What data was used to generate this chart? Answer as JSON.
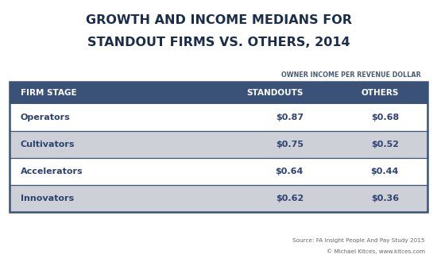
{
  "title_line1": "GROWTH AND INCOME MEDIANS FOR",
  "title_line2": "STANDOUT FIRMS VS. OTHERS, 2014",
  "subtitle": "OWNER INCOME PER REVENUE DOLLAR",
  "header": [
    "FIRM STAGE",
    "STANDOUTS",
    "OTHERS"
  ],
  "rows": [
    [
      "Operators",
      "$0.87",
      "$0.68"
    ],
    [
      "Cultivators",
      "$0.75",
      "$0.52"
    ],
    [
      "Accelerators",
      "$0.64",
      "$0.44"
    ],
    [
      "Innovators",
      "$0.62",
      "$0.36"
    ]
  ],
  "header_bg": "#3a5278",
  "header_text": "#ffffff",
  "row_bg_even": "#ffffff",
  "row_bg_odd": "#cdd0d6",
  "row_text": "#2e4272",
  "border_color": "#3a5278",
  "title_color": "#1a2e4a",
  "subtitle_color": "#4a5a72",
  "source_text": "Source: FA Insight People And Pay Study 2015",
  "credit_text": "© Michael Kitces, www.kitces.com",
  "fig_bg": "#ffffff"
}
